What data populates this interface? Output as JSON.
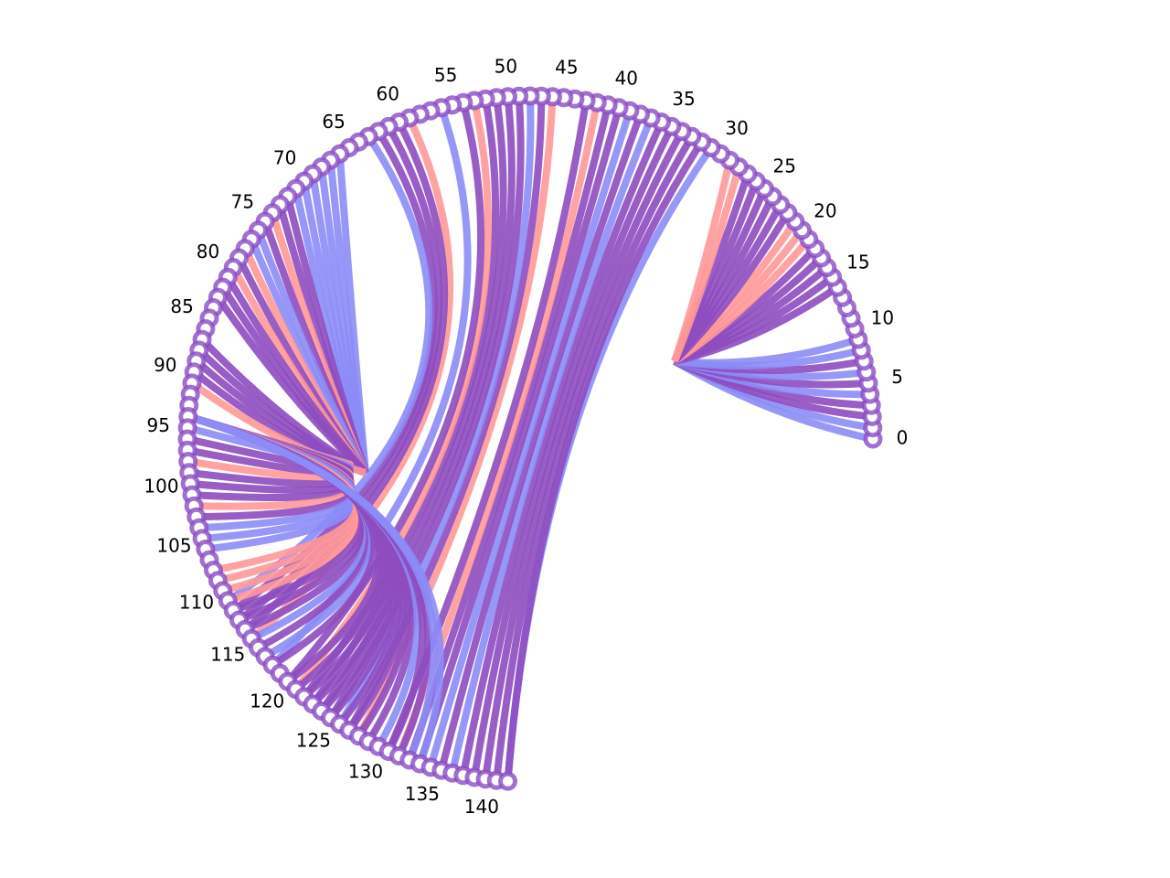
{
  "chart_data": {
    "type": "chord",
    "title": "",
    "node_count": 143,
    "node_ids": [
      0,
      1,
      2,
      3,
      4,
      5,
      6,
      7,
      8,
      9,
      10,
      11,
      12,
      13,
      14,
      15,
      16,
      17,
      18,
      19,
      20,
      21,
      22,
      23,
      24,
      25,
      26,
      27,
      28,
      29,
      30,
      31,
      32,
      33,
      34,
      35,
      36,
      37,
      38,
      39,
      40,
      41,
      42,
      43,
      44,
      45,
      46,
      47,
      48,
      49,
      50,
      51,
      52,
      53,
      54,
      55,
      56,
      57,
      58,
      59,
      60,
      61,
      62,
      63,
      64,
      65,
      66,
      67,
      68,
      69,
      70,
      71,
      72,
      73,
      74,
      75,
      76,
      77,
      78,
      79,
      80,
      81,
      82,
      83,
      84,
      85,
      86,
      87,
      88,
      89,
      90,
      91,
      92,
      93,
      94,
      95,
      96,
      97,
      98,
      99,
      100,
      101,
      102,
      103,
      104,
      105,
      106,
      107,
      108,
      109,
      110,
      111,
      112,
      113,
      114,
      115,
      116,
      117,
      118,
      119,
      120,
      121,
      122,
      123,
      124,
      125,
      126,
      127,
      128,
      129,
      130,
      131,
      132,
      133,
      134,
      135,
      136,
      137,
      138,
      139,
      140,
      141,
      142
    ],
    "tick_labels": [
      "0",
      "5",
      "10",
      "15",
      "20",
      "25",
      "30",
      "35",
      "40",
      "45",
      "50",
      "55",
      "60",
      "65",
      "70",
      "75",
      "80",
      "85",
      "90",
      "95",
      "100",
      "105",
      "110",
      "115",
      "120",
      "125",
      "130",
      "135",
      "140"
    ],
    "colors": {
      "blue": "#8c8cf7",
      "purple": "#8e4cbf",
      "red": "#ff9898",
      "ring_node": "#8a4cc4"
    },
    "links": [
      {
        "source": 0,
        "target": 0,
        "color": "blue"
      },
      {
        "source": 1,
        "target": 1,
        "color": "blue"
      },
      {
        "source": 2,
        "target": 2,
        "color": "purple"
      },
      {
        "source": 3,
        "target": 3,
        "color": "purple"
      },
      {
        "source": 4,
        "target": 4,
        "color": "blue"
      },
      {
        "source": 5,
        "target": 5,
        "color": "purple"
      },
      {
        "source": 6,
        "target": 6,
        "color": "blue"
      },
      {
        "source": 7,
        "target": 7,
        "color": "purple"
      },
      {
        "source": 8,
        "target": 8,
        "color": "blue"
      },
      {
        "source": 9,
        "target": 9,
        "color": "blue"
      },
      {
        "source": 14,
        "target": 14,
        "color": "purple"
      },
      {
        "source": 15,
        "target": 15,
        "color": "purple"
      },
      {
        "source": 16,
        "target": 16,
        "color": "purple"
      },
      {
        "source": 17,
        "target": 17,
        "color": "purple"
      },
      {
        "source": 18,
        "target": 18,
        "color": "purple"
      },
      {
        "source": 19,
        "target": 19,
        "color": "red"
      },
      {
        "source": 20,
        "target": 20,
        "color": "red"
      },
      {
        "source": 21,
        "target": 21,
        "color": "red"
      },
      {
        "source": 22,
        "target": 22,
        "color": "purple"
      },
      {
        "source": 23,
        "target": 23,
        "color": "purple"
      },
      {
        "source": 24,
        "target": 24,
        "color": "purple"
      },
      {
        "source": 25,
        "target": 25,
        "color": "purple"
      },
      {
        "source": 26,
        "target": 26,
        "color": "purple"
      },
      {
        "source": 27,
        "target": 27,
        "color": "purple"
      },
      {
        "source": 28,
        "target": 28,
        "color": "red"
      },
      {
        "source": 29,
        "target": 29,
        "color": "red"
      },
      {
        "source": 31,
        "target": 31,
        "color": "blue"
      },
      {
        "source": 32,
        "target": 32,
        "color": "purple"
      },
      {
        "source": 33,
        "target": 33,
        "color": "purple"
      },
      {
        "source": 34,
        "target": 34,
        "color": "purple"
      },
      {
        "source": 35,
        "target": 35,
        "color": "purple"
      },
      {
        "source": 36,
        "target": 36,
        "color": "purple"
      },
      {
        "source": 37,
        "target": 37,
        "color": "blue"
      },
      {
        "source": 38,
        "target": 38,
        "color": "purple"
      },
      {
        "source": 39,
        "target": 39,
        "color": "blue"
      },
      {
        "source": 40,
        "target": 40,
        "color": "purple"
      },
      {
        "source": 41,
        "target": 41,
        "color": "purple"
      },
      {
        "source": 42,
        "target": 42,
        "color": "red"
      },
      {
        "source": 43,
        "target": 43,
        "color": "purple"
      },
      {
        "source": 46,
        "target": 46,
        "color": "red"
      },
      {
        "source": 47,
        "target": 47,
        "color": "purple"
      },
      {
        "source": 48,
        "target": 48,
        "color": "blue"
      },
      {
        "source": 49,
        "target": 49,
        "color": "purple"
      },
      {
        "source": 50,
        "target": 50,
        "color": "purple"
      },
      {
        "source": 51,
        "target": 51,
        "color": "purple"
      },
      {
        "source": 52,
        "target": 52,
        "color": "purple"
      },
      {
        "source": 53,
        "target": 53,
        "color": "red"
      },
      {
        "source": 54,
        "target": 54,
        "color": "purple"
      },
      {
        "source": 56,
        "target": 56,
        "color": "blue"
      },
      {
        "source": 59,
        "target": 59,
        "color": "red"
      },
      {
        "source": 60,
        "target": 60,
        "color": "purple"
      },
      {
        "source": 61,
        "target": 61,
        "color": "purple"
      },
      {
        "source": 62,
        "target": 62,
        "color": "purple"
      },
      {
        "source": 63,
        "target": 63,
        "color": "blue"
      },
      {
        "source": 66,
        "target": 66,
        "color": "blue"
      },
      {
        "source": 67,
        "target": 67,
        "color": "blue"
      },
      {
        "source": 68,
        "target": 68,
        "color": "blue"
      },
      {
        "source": 69,
        "target": 69,
        "color": "blue"
      },
      {
        "source": 70,
        "target": 70,
        "color": "blue"
      },
      {
        "source": 71,
        "target": 71,
        "color": "blue"
      },
      {
        "source": 72,
        "target": 72,
        "color": "purple"
      },
      {
        "source": 73,
        "target": 73,
        "color": "purple"
      },
      {
        "source": 74,
        "target": 74,
        "color": "red"
      },
      {
        "source": 75,
        "target": 75,
        "color": "purple"
      },
      {
        "source": 76,
        "target": 76,
        "color": "blue"
      },
      {
        "source": 77,
        "target": 77,
        "color": "blue"
      },
      {
        "source": 78,
        "target": 78,
        "color": "red"
      },
      {
        "source": 79,
        "target": 79,
        "color": "purple"
      },
      {
        "source": 80,
        "target": 80,
        "color": "red"
      },
      {
        "source": 81,
        "target": 81,
        "color": "purple"
      },
      {
        "source": 82,
        "target": 82,
        "color": "purple"
      },
      {
        "source": 83,
        "target": 83,
        "color": "purple"
      },
      {
        "source": 87,
        "target": 87,
        "color": "purple"
      },
      {
        "source": 88,
        "target": 88,
        "color": "purple"
      },
      {
        "source": 89,
        "target": 89,
        "color": "purple"
      },
      {
        "source": 90,
        "target": 90,
        "color": "purple"
      },
      {
        "source": 91,
        "target": 91,
        "color": "red"
      },
      {
        "source": 94,
        "target": 94,
        "color": "red"
      },
      {
        "source": 95,
        "target": 95,
        "color": "blue"
      },
      {
        "source": 96,
        "target": 96,
        "color": "purple"
      },
      {
        "source": 97,
        "target": 97,
        "color": "purple"
      },
      {
        "source": 98,
        "target": 98,
        "color": "red"
      },
      {
        "source": 99,
        "target": 99,
        "color": "purple"
      },
      {
        "source": 100,
        "target": 100,
        "color": "purple"
      },
      {
        "source": 101,
        "target": 101,
        "color": "purple"
      },
      {
        "source": 102,
        "target": 102,
        "color": "red"
      },
      {
        "source": 103,
        "target": 103,
        "color": "purple"
      },
      {
        "source": 104,
        "target": 104,
        "color": "blue"
      },
      {
        "source": 105,
        "target": 105,
        "color": "blue"
      },
      {
        "source": 106,
        "target": 106,
        "color": "blue"
      },
      {
        "source": 108,
        "target": 108,
        "color": "red"
      },
      {
        "source": 109,
        "target": 109,
        "color": "red"
      },
      {
        "source": 110,
        "target": 110,
        "color": "red"
      },
      {
        "source": 111,
        "target": 111,
        "color": "red"
      },
      {
        "source": 112,
        "target": 112,
        "color": "purple"
      },
      {
        "source": 113,
        "target": 113,
        "color": "purple"
      },
      {
        "source": 114,
        "target": 114,
        "color": "purple"
      },
      {
        "source": 115,
        "target": 115,
        "color": "blue"
      },
      {
        "source": 116,
        "target": 116,
        "color": "purple"
      },
      {
        "source": 117,
        "target": 117,
        "color": "blue"
      },
      {
        "source": 118,
        "target": 118,
        "color": "purple"
      },
      {
        "source": 120,
        "target": 120,
        "color": "purple"
      },
      {
        "source": 121,
        "target": 121,
        "color": "purple"
      },
      {
        "source": 122,
        "target": 122,
        "color": "purple"
      },
      {
        "source": 123,
        "target": 123,
        "color": "purple"
      },
      {
        "source": 124,
        "target": 124,
        "color": "purple"
      },
      {
        "source": 125,
        "target": 125,
        "color": "purple"
      },
      {
        "source": 126,
        "target": 126,
        "color": "purple"
      },
      {
        "source": 127,
        "target": 127,
        "color": "purple"
      },
      {
        "source": 128,
        "target": 128,
        "color": "purple"
      },
      {
        "source": 129,
        "target": 129,
        "color": "purple"
      },
      {
        "source": 130,
        "target": 130,
        "color": "blue"
      },
      {
        "source": 131,
        "target": 131,
        "color": "purple"
      },
      {
        "source": 132,
        "target": 132,
        "color": "purple"
      },
      {
        "source": 133,
        "target": 133,
        "color": "blue"
      },
      {
        "source": 134,
        "target": 134,
        "color": "blue"
      }
    ]
  }
}
